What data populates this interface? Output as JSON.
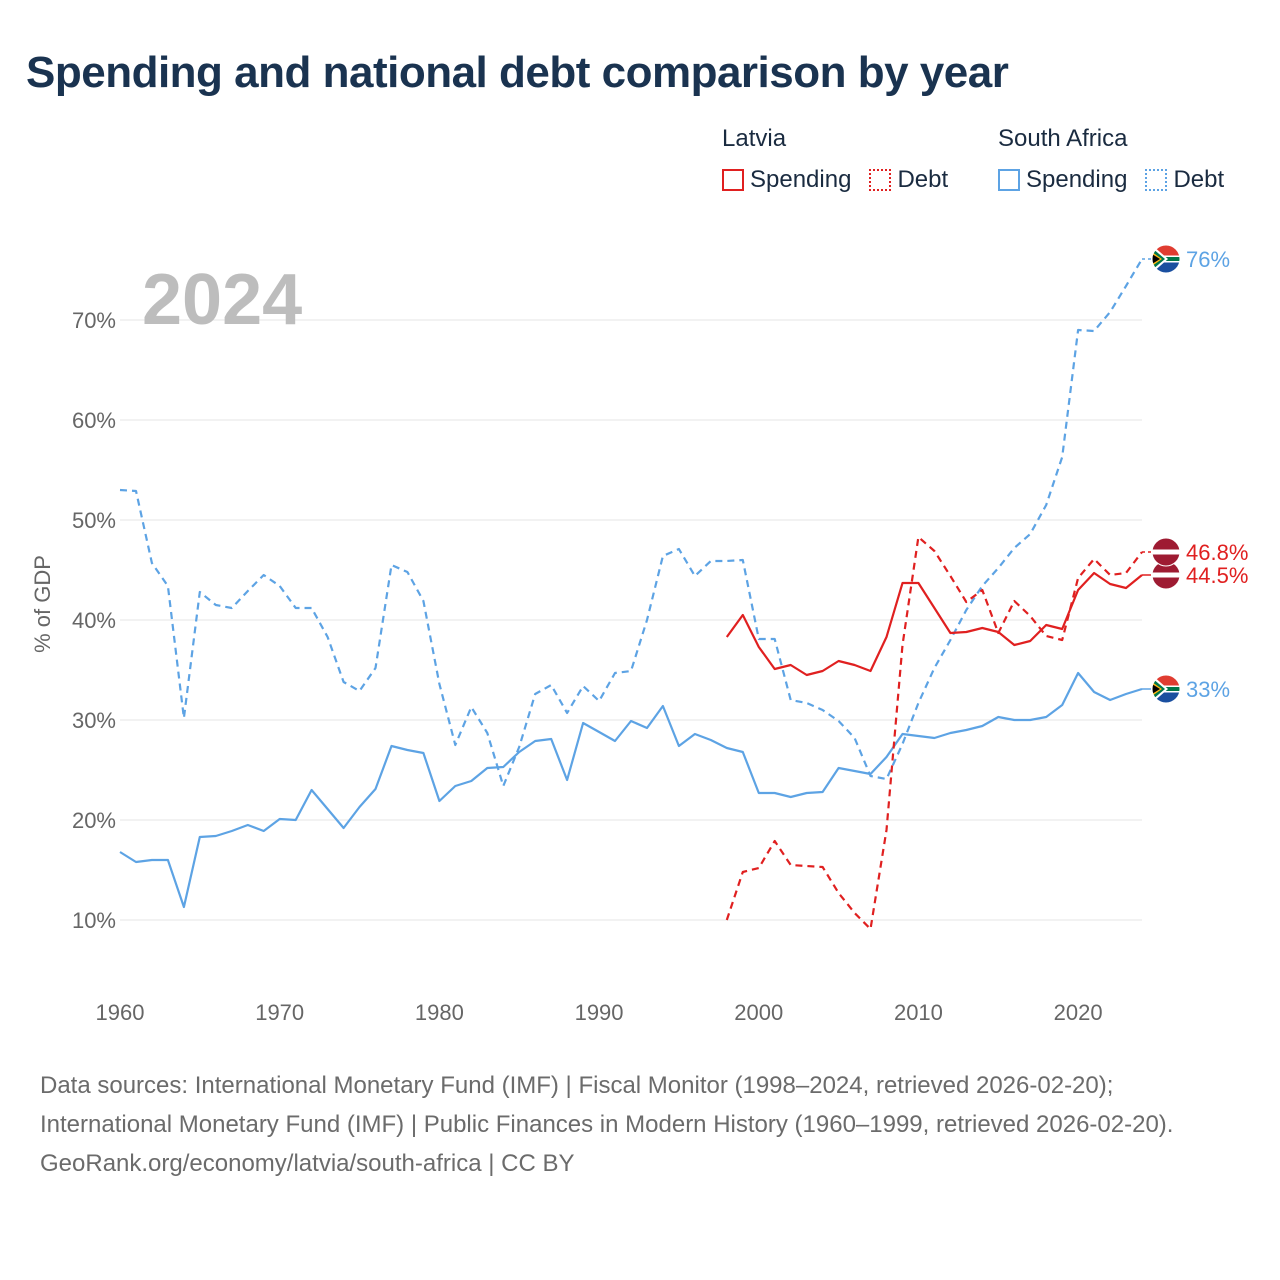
{
  "title": "Spending and national debt comparison by year",
  "colors": {
    "latvia": "#e02020",
    "south_africa": "#5da3e4"
  },
  "legend": [
    {
      "country": "Latvia",
      "items": [
        "Spending",
        "Debt"
      ]
    },
    {
      "country": "South Africa",
      "items": [
        "Spending",
        "Debt"
      ]
    }
  ],
  "chart_data": {
    "type": "line",
    "year_label": "2024",
    "ylabel": "% of GDP",
    "xlim": [
      1960,
      2024
    ],
    "ylim": [
      4,
      78
    ],
    "x_ticks": [
      1960,
      1970,
      1980,
      1990,
      2000,
      2010,
      2020
    ],
    "x_tick_labels": [
      "1960",
      "1970",
      "1980",
      "1990",
      "2000",
      "2010",
      "2020"
    ],
    "y_ticks": [
      10,
      20,
      30,
      40,
      50,
      60,
      70
    ],
    "y_tick_labels": [
      "10%",
      "20%",
      "30%",
      "40%",
      "50%",
      "60%",
      "70%"
    ],
    "series": [
      {
        "name": "South Africa Spending",
        "country": "South Africa",
        "kind": "Spending",
        "end_label": "33%",
        "x": [
          1960,
          1961,
          1962,
          1963,
          1964,
          1965,
          1966,
          1967,
          1968,
          1969,
          1970,
          1971,
          1972,
          1973,
          1974,
          1975,
          1976,
          1977,
          1978,
          1979,
          1980,
          1981,
          1982,
          1983,
          1984,
          1985,
          1986,
          1987,
          1988,
          1989,
          1990,
          1991,
          1992,
          1993,
          1994,
          1995,
          1996,
          1997,
          1998,
          1999,
          2000,
          2001,
          2002,
          2003,
          2004,
          2005,
          2006,
          2007,
          2008,
          2009,
          2010,
          2011,
          2012,
          2013,
          2014,
          2015,
          2016,
          2017,
          2018,
          2019,
          2020,
          2021,
          2022,
          2023,
          2024
        ],
        "values": [
          16.8,
          15.8,
          16.0,
          16.0,
          11.3,
          18.3,
          18.4,
          18.9,
          19.5,
          18.9,
          20.1,
          20.0,
          23.0,
          21.1,
          19.2,
          21.3,
          23.1,
          27.4,
          27.0,
          26.7,
          21.9,
          23.4,
          23.9,
          25.2,
          25.3,
          26.8,
          27.9,
          28.1,
          24.0,
          29.7,
          28.8,
          27.9,
          29.9,
          29.2,
          31.4,
          27.4,
          28.6,
          28.0,
          27.2,
          26.8,
          22.7,
          22.7,
          22.3,
          22.7,
          22.8,
          25.2,
          24.9,
          24.6,
          26.3,
          28.6,
          28.4,
          28.2,
          28.7,
          29.0,
          29.4,
          30.3,
          30.0,
          30.0,
          30.3,
          31.5,
          34.7,
          32.8,
          32.0,
          32.6,
          33.1
        ]
      },
      {
        "name": "South Africa Debt",
        "country": "South Africa",
        "kind": "Debt",
        "end_label": "76%",
        "x": [
          1960,
          1961,
          1962,
          1963,
          1964,
          1965,
          1966,
          1967,
          1968,
          1969,
          1970,
          1971,
          1972,
          1973,
          1974,
          1975,
          1976,
          1977,
          1978,
          1979,
          1980,
          1981,
          1982,
          1983,
          1984,
          1985,
          1986,
          1987,
          1988,
          1989,
          1990,
          1991,
          1992,
          1993,
          1994,
          1995,
          1996,
          1997,
          1998,
          1999,
          2000,
          2001,
          2002,
          2003,
          2004,
          2005,
          2006,
          2007,
          2008,
          2009,
          2010,
          2011,
          2012,
          2013,
          2014,
          2015,
          2016,
          2017,
          2018,
          2019,
          2020,
          2021,
          2022,
          2023,
          2024
        ],
        "values": [
          53.0,
          52.9,
          45.7,
          43.4,
          30.2,
          42.8,
          41.5,
          41.2,
          42.9,
          44.5,
          43.4,
          41.2,
          41.2,
          38.3,
          33.8,
          32.9,
          35.2,
          45.5,
          44.8,
          41.9,
          33.6,
          27.5,
          31.3,
          28.7,
          23.4,
          27.3,
          32.6,
          33.5,
          30.7,
          33.4,
          31.9,
          34.7,
          34.9,
          40.0,
          46.4,
          47.1,
          44.4,
          45.9,
          45.9,
          46.0,
          38.1,
          38.1,
          32.0,
          31.7,
          31.0,
          29.9,
          28.2,
          24.4,
          24.1,
          27.6,
          31.7,
          35.2,
          38.0,
          41.0,
          43.4,
          45.2,
          47.2,
          48.6,
          51.5,
          56.3,
          69.0,
          68.9,
          70.8,
          73.4,
          76.1
        ]
      },
      {
        "name": "Latvia Spending",
        "country": "Latvia",
        "kind": "Spending",
        "end_label": "44.5%",
        "x": [
          1998,
          1999,
          2000,
          2001,
          2002,
          2003,
          2004,
          2005,
          2006,
          2007,
          2008,
          2009,
          2010,
          2011,
          2012,
          2013,
          2014,
          2015,
          2016,
          2017,
          2018,
          2019,
          2020,
          2021,
          2022,
          2023,
          2024
        ],
        "values": [
          38.3,
          40.5,
          37.3,
          35.1,
          35.5,
          34.5,
          34.9,
          35.9,
          35.5,
          34.9,
          38.3,
          43.7,
          43.7,
          41.2,
          38.7,
          38.8,
          39.2,
          38.8,
          37.5,
          37.9,
          39.5,
          39.1,
          43.0,
          44.7,
          43.6,
          43.2,
          44.5
        ]
      },
      {
        "name": "Latvia Debt",
        "country": "Latvia",
        "kind": "Debt",
        "end_label": "46.8%",
        "x": [
          1998,
          1999,
          2000,
          2001,
          2002,
          2003,
          2004,
          2005,
          2006,
          2007,
          2008,
          2009,
          2010,
          2011,
          2012,
          2013,
          2014,
          2015,
          2016,
          2017,
          2018,
          2019,
          2020,
          2021,
          2022,
          2023,
          2024
        ],
        "values": [
          10.0,
          14.8,
          15.2,
          17.9,
          15.5,
          15.4,
          15.3,
          12.7,
          10.7,
          9.1,
          19.0,
          37.5,
          48.3,
          46.9,
          44.4,
          41.8,
          43.0,
          38.7,
          41.9,
          40.4,
          38.4,
          38.0,
          44.2,
          46.1,
          44.5,
          44.7,
          46.8
        ]
      }
    ]
  },
  "footer": {
    "sources": "Data sources: International Monetary Fund (IMF) | Fiscal Monitor (1998–2024, retrieved 2026-02-20); International Monetary Fund (IMF) | Public Finances in Modern History (1960–1999, retrieved 2026-02-20).",
    "credit": "GeoRank.org/economy/latvia/south-africa | CC BY"
  }
}
